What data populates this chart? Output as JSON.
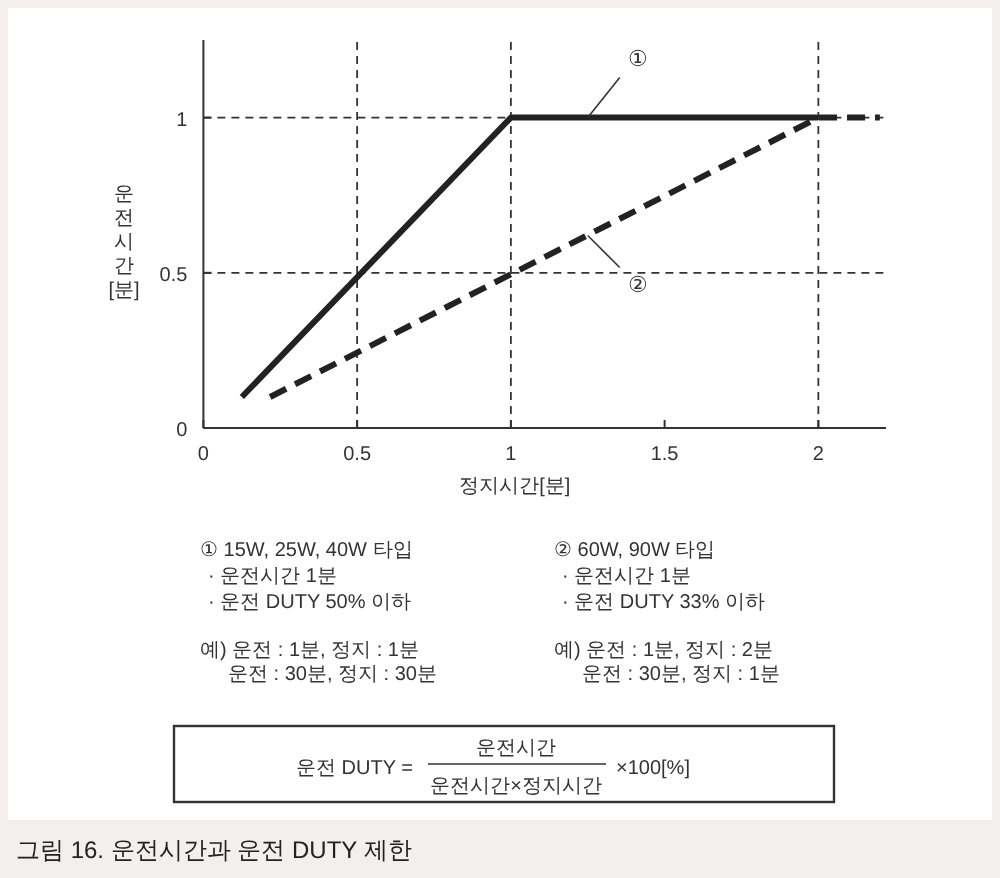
{
  "chart_data": {
    "type": "line",
    "xlabel": "정지시간[분]",
    "ylabel": "운전시간[분]",
    "xlim": [
      0,
      2.22
    ],
    "ylim": [
      0,
      1.25
    ],
    "xticks": [
      0,
      0.5,
      1,
      1.5,
      2
    ],
    "yticks": [
      0,
      0.5,
      1
    ],
    "grid": false,
    "marker": "none",
    "series": [
      {
        "x": [
          0.125,
          1,
          2
        ],
        "values": [
          0.1,
          1,
          1
        ],
        "color": "#222222",
        "line_style": "solid"
      },
      {
        "x": [
          0.217,
          2,
          2.2
        ],
        "values": [
          0.1,
          1,
          1
        ],
        "color": "#222222",
        "line_style": "dashed"
      }
    ],
    "ref_lines": [
      {
        "axis": "y",
        "value": 1,
        "line_style": "dashed",
        "color": "#333333"
      },
      {
        "axis": "y",
        "value": 0.5,
        "line_style": "dashed",
        "color": "#333333"
      },
      {
        "axis": "x",
        "value": 0.5,
        "line_style": "dashed",
        "color": "#333333"
      },
      {
        "axis": "x",
        "value": 1,
        "line_style": "dashed",
        "color": "#333333"
      },
      {
        "axis": "x",
        "value": 2,
        "line_style": "dashed",
        "color": "#333333"
      }
    ],
    "annotations": [
      {
        "text": "①",
        "x": 1.25,
        "y": 1
      },
      {
        "text": "②",
        "x": 1.25,
        "y": 0.62
      },
      "① 15W, 25W, 40W 타입",
      "· 운전시간 1분",
      "· 운전 DUTY 50% 이하",
      "예) 운전 : 1분, 정지 : 1분",
      "운전 : 30분, 정지 : 30분",
      "② 60W, 90W 타입",
      "· 운전시간 1분",
      "· 운전 DUTY 33% 이하",
      "예) 운전 : 1분, 정지 : 2분",
      "운전 : 30분, 정지 : 1분",
      "운전 DUTY =",
      "운전시간",
      "운전시간×정지시간",
      "×100[%]",
      "그림 16. 운전시간과 운전 DUTY 제한"
    ]
  }
}
